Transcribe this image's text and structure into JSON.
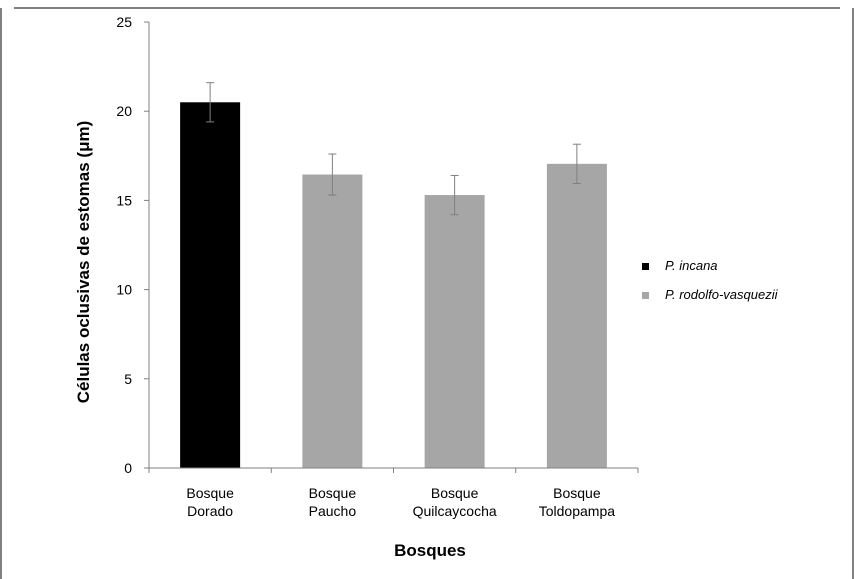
{
  "chart_data": {
    "type": "bar",
    "categories": [
      [
        "Bosque",
        "Dorado"
      ],
      [
        "Bosque",
        "Paucho"
      ],
      [
        "Bosque",
        "Quilcaycocha"
      ],
      [
        "Bosque",
        "Toldopampa"
      ]
    ],
    "values": [
      20.5,
      16.45,
      15.3,
      17.05
    ],
    "errors": [
      1.1,
      1.15,
      1.1,
      1.1
    ],
    "bar_series": [
      0,
      1,
      1,
      1
    ],
    "xlabel": "Bosques",
    "ylabel": "Células oclusivas de estomas (μm)",
    "ylim": [
      0,
      25
    ],
    "yticks": [
      0,
      5,
      10,
      15,
      20,
      25
    ],
    "grid": false,
    "legend_position": "right",
    "legend": [
      {
        "name": "P. incana",
        "color": "#000000"
      },
      {
        "name": "P. rodolfo-vasquezii",
        "color": "#a6a6a6"
      }
    ]
  }
}
